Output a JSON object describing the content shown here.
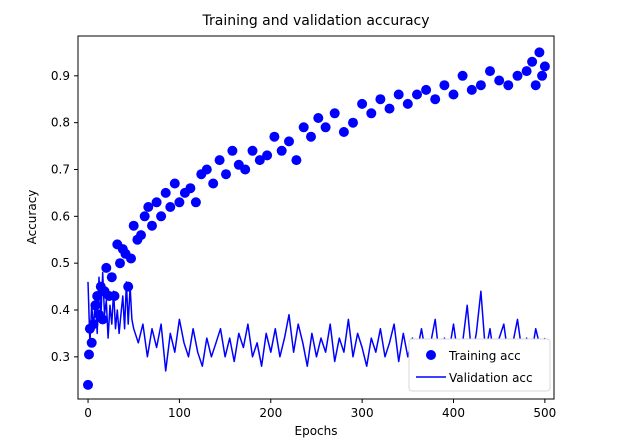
{
  "chart_data": {
    "type": "scatter",
    "title": "Training and validation accuracy",
    "xlabel": "Epochs",
    "ylabel": "Accuracy",
    "xlim": [
      -11,
      510
    ],
    "ylim": [
      0.21,
      0.985
    ],
    "xticks": [
      0,
      100,
      200,
      300,
      400,
      500
    ],
    "yticks": [
      0.3,
      0.4,
      0.5,
      0.6,
      0.7,
      0.8,
      0.9
    ],
    "xtick_labels": [
      "0",
      "100",
      "200",
      "300",
      "400",
      "500"
    ],
    "ytick_labels": [
      "0.3",
      "0.4",
      "0.5",
      "0.6",
      "0.7",
      "0.8",
      "0.9"
    ],
    "grid": false,
    "legend_position": "lower-right",
    "series": [
      {
        "name": "Training acc",
        "mark": "dots",
        "color": "#0000ff",
        "x": [
          0,
          1,
          2,
          4,
          6,
          8,
          10,
          12,
          14,
          16,
          18,
          20,
          23,
          26,
          29,
          32,
          35,
          38,
          41,
          44,
          47,
          50,
          54,
          58,
          62,
          66,
          70,
          75,
          80,
          85,
          90,
          95,
          100,
          106,
          112,
          118,
          124,
          130,
          137,
          144,
          151,
          158,
          165,
          172,
          180,
          188,
          196,
          204,
          212,
          220,
          228,
          236,
          244,
          252,
          260,
          270,
          280,
          290,
          300,
          310,
          320,
          330,
          340,
          350,
          360,
          370,
          380,
          390,
          400,
          410,
          420,
          430,
          440,
          450,
          460,
          470,
          480,
          486,
          490,
          494,
          497,
          500
        ],
        "values": [
          0.24,
          0.305,
          0.36,
          0.33,
          0.37,
          0.41,
          0.43,
          0.39,
          0.45,
          0.38,
          0.44,
          0.49,
          0.43,
          0.47,
          0.43,
          0.54,
          0.5,
          0.53,
          0.52,
          0.45,
          0.51,
          0.58,
          0.55,
          0.56,
          0.6,
          0.62,
          0.58,
          0.63,
          0.6,
          0.65,
          0.62,
          0.67,
          0.63,
          0.65,
          0.66,
          0.63,
          0.69,
          0.7,
          0.67,
          0.72,
          0.69,
          0.74,
          0.71,
          0.7,
          0.74,
          0.72,
          0.73,
          0.77,
          0.74,
          0.76,
          0.72,
          0.79,
          0.77,
          0.81,
          0.79,
          0.82,
          0.78,
          0.8,
          0.84,
          0.82,
          0.85,
          0.83,
          0.86,
          0.84,
          0.86,
          0.87,
          0.85,
          0.88,
          0.86,
          0.9,
          0.87,
          0.88,
          0.91,
          0.89,
          0.88,
          0.9,
          0.91,
          0.93,
          0.88,
          0.95,
          0.9,
          0.92
        ]
      },
      {
        "name": "Validation acc",
        "mark": "line",
        "color": "#0000ff",
        "x": [
          0,
          2,
          4,
          6,
          8,
          10,
          12,
          14,
          16,
          18,
          20,
          22,
          24,
          26,
          28,
          30,
          32,
          34,
          36,
          38,
          40,
          42,
          44,
          46,
          48,
          50,
          55,
          60,
          65,
          70,
          75,
          80,
          85,
          90,
          95,
          100,
          105,
          110,
          115,
          120,
          125,
          130,
          135,
          140,
          145,
          150,
          155,
          160,
          165,
          170,
          175,
          180,
          185,
          190,
          195,
          200,
          205,
          210,
          215,
          220,
          225,
          230,
          235,
          240,
          245,
          250,
          255,
          260,
          265,
          270,
          275,
          280,
          285,
          290,
          295,
          300,
          305,
          310,
          315,
          320,
          325,
          330,
          335,
          340,
          345,
          350,
          355,
          360,
          365,
          370,
          375,
          380,
          385,
          390,
          395,
          400,
          405,
          410,
          415,
          420,
          425,
          430,
          435,
          440,
          445,
          450,
          455,
          460,
          465,
          470,
          475,
          480,
          485,
          490,
          495,
          500
        ],
        "values": [
          0.46,
          0.33,
          0.41,
          0.36,
          0.43,
          0.35,
          0.47,
          0.38,
          0.48,
          0.39,
          0.42,
          0.34,
          0.41,
          0.37,
          0.44,
          0.36,
          0.4,
          0.35,
          0.39,
          0.43,
          0.36,
          0.46,
          0.37,
          0.45,
          0.38,
          0.36,
          0.33,
          0.37,
          0.3,
          0.36,
          0.32,
          0.37,
          0.27,
          0.35,
          0.31,
          0.38,
          0.33,
          0.3,
          0.36,
          0.31,
          0.28,
          0.34,
          0.3,
          0.33,
          0.36,
          0.3,
          0.34,
          0.29,
          0.35,
          0.32,
          0.37,
          0.3,
          0.33,
          0.28,
          0.35,
          0.31,
          0.36,
          0.3,
          0.34,
          0.39,
          0.31,
          0.37,
          0.33,
          0.28,
          0.35,
          0.3,
          0.34,
          0.31,
          0.37,
          0.29,
          0.34,
          0.31,
          0.38,
          0.3,
          0.35,
          0.32,
          0.28,
          0.34,
          0.31,
          0.36,
          0.3,
          0.33,
          0.37,
          0.29,
          0.35,
          0.3,
          0.34,
          0.31,
          0.36,
          0.3,
          0.33,
          0.38,
          0.29,
          0.34,
          0.31,
          0.37,
          0.3,
          0.33,
          0.41,
          0.3,
          0.35,
          0.44,
          0.31,
          0.36,
          0.29,
          0.34,
          0.37,
          0.3,
          0.33,
          0.38,
          0.31,
          0.34,
          0.3,
          0.36,
          0.32,
          0.34
        ]
      }
    ]
  }
}
